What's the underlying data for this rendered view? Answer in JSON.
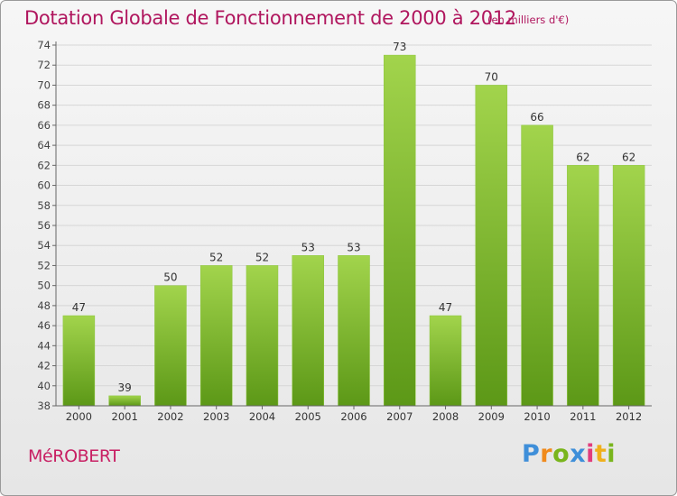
{
  "title": "Dotation Globale de Fonctionnement de 2000 à 2012",
  "subtitle": "(en milliers d'€)",
  "commune": "MéROBERT",
  "logo": {
    "text": "Proxiti"
  },
  "colors": {
    "bar_light": "#9fd14a",
    "bar_dark": "#5e9a18",
    "title": "#b0165e",
    "axis": "#555555",
    "grid": "#d0d0d0"
  },
  "chart_data": {
    "type": "bar",
    "title": "Dotation Globale de Fonctionnement de 2000 à 2012",
    "subtitle": "(en milliers d'€)",
    "xlabel": "",
    "ylabel": "",
    "categories": [
      "2000",
      "2001",
      "2002",
      "2003",
      "2004",
      "2005",
      "2006",
      "2007",
      "2008",
      "2009",
      "2010",
      "2011",
      "2012"
    ],
    "values": [
      47,
      39,
      50,
      52,
      52,
      53,
      53,
      73,
      47,
      70,
      66,
      62,
      62
    ],
    "ylim": [
      38,
      74
    ],
    "yticks": [
      38,
      40,
      42,
      44,
      46,
      48,
      50,
      52,
      54,
      56,
      58,
      60,
      62,
      64,
      66,
      68,
      70,
      72,
      74
    ],
    "grid": true,
    "legend": "none"
  }
}
